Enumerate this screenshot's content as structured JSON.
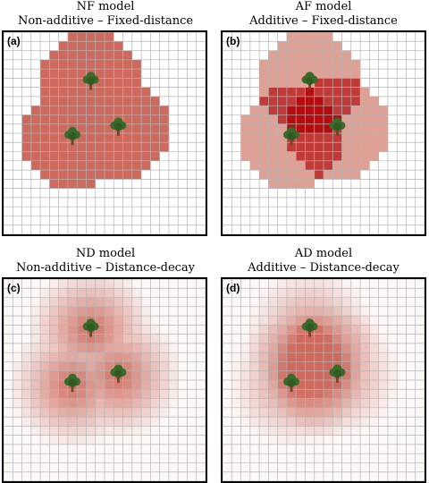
{
  "panels": [
    {
      "label": "(a)",
      "title": "NF model",
      "subtitle": "Non-additive – Fixed-distance",
      "additive": false,
      "decay": false
    },
    {
      "label": "(b)",
      "title": "AF model",
      "subtitle": "Additive – Fixed-distance",
      "additive": true,
      "decay": false
    },
    {
      "label": "(c)",
      "title": "ND model",
      "subtitle": "Non-additive – Distance-decay",
      "additive": false,
      "decay": true
    },
    {
      "label": "(d)",
      "title": "AD model",
      "subtitle": "Additive – Distance-decay",
      "additive": true,
      "decay": true
    }
  ],
  "grid_cells": 22,
  "trees": [
    {
      "col": 9,
      "row": 5
    },
    {
      "col": 12,
      "row": 10
    },
    {
      "col": 7,
      "row": 11
    }
  ],
  "icon": "tree-icon",
  "colors": {
    "grid_line": "#b4b4b4",
    "border": "#000000",
    "fixed_single": "#cd6a5d",
    "additive_one": "#dfa095",
    "additive_two": "#c03a37",
    "additive_three": "#b30d10",
    "decay_peak": "#cd6a5d",
    "background": "#ffffff",
    "tree_canopy": "#3a6a2a",
    "tree_trunk": "#6b4a26"
  }
}
